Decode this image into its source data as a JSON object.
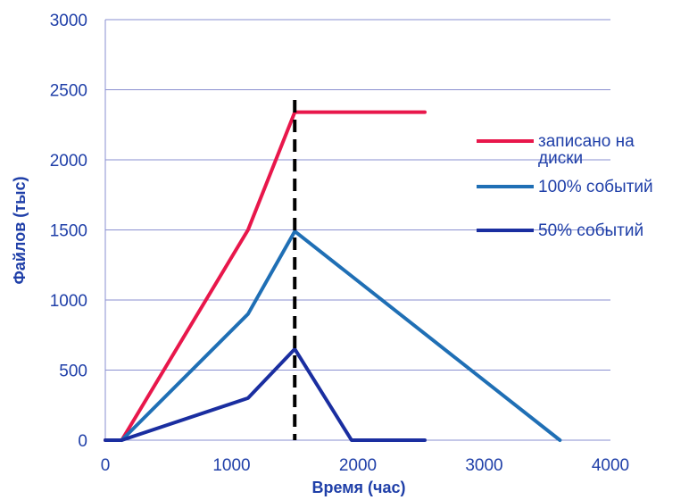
{
  "chart_data": {
    "type": "line",
    "xlabel": "Время (час)",
    "ylabel": "Файлов (тыс)",
    "xlim": [
      0,
      4000
    ],
    "ylim": [
      0,
      3000
    ],
    "xticks": [
      "0",
      "1000",
      "2000",
      "3000",
      "4000"
    ],
    "yticks": [
      "0",
      "500",
      "1000",
      "1500",
      "2000",
      "2500",
      "3000"
    ],
    "grid": "horizontal",
    "legend_position": "right",
    "series": [
      {
        "name": "записано на диски",
        "color": "#e8174b",
        "x": [
          0,
          130,
          1130,
          1500,
          2530
        ],
        "y": [
          0,
          0,
          1500,
          2340,
          2340
        ]
      },
      {
        "name": "100% событий",
        "color": "#1f6fb5",
        "x": [
          130,
          1130,
          1500,
          3600,
          3600
        ],
        "y": [
          0,
          900,
          1490,
          0,
          0
        ]
      },
      {
        "name": "50% событий",
        "color": "#1a2ea0",
        "x": [
          0,
          130,
          1130,
          1500,
          1950,
          2530
        ],
        "y": [
          0,
          0,
          300,
          650,
          0,
          0
        ]
      }
    ],
    "annotations": [
      {
        "type": "vline",
        "x": 1500,
        "style": "dashed",
        "color": "#000000"
      }
    ]
  }
}
